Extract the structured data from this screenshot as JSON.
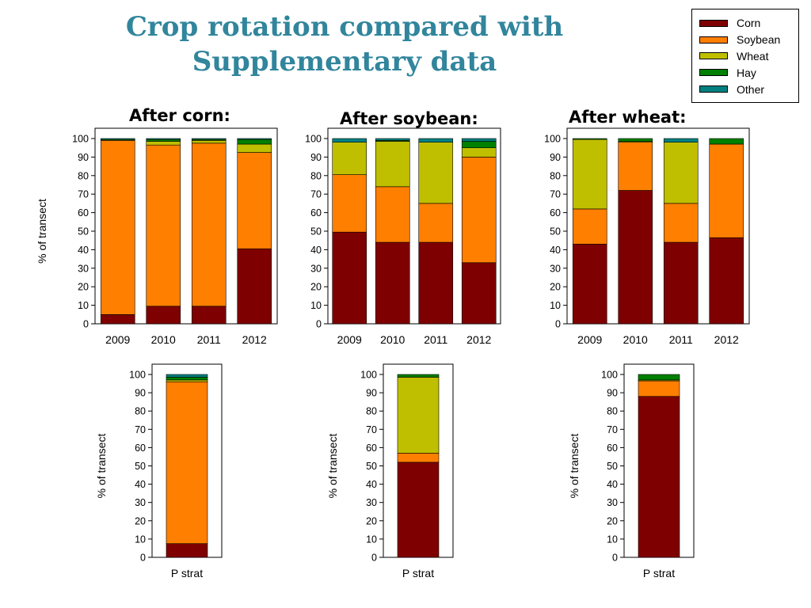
{
  "slide": {
    "title_line1": "Crop rotation compared with",
    "title_line2": "Supplementary data"
  },
  "legend": {
    "items": [
      {
        "label": "Corn",
        "color": "#7f0000"
      },
      {
        "label": "Soybean",
        "color": "#ff7f00"
      },
      {
        "label": "Wheat",
        "color": "#bfbf00"
      },
      {
        "label": "Hay",
        "color": "#008000"
      },
      {
        "label": "Other",
        "color": "#008080"
      }
    ]
  },
  "colors": {
    "corn": "#7f0000",
    "soybean": "#ff7f00",
    "wheat": "#bfbf00",
    "hay": "#008000",
    "other": "#008080"
  },
  "chart_data": [
    {
      "type": "bar",
      "stacked": true,
      "title": "After corn:",
      "ylabel": "% of transect",
      "xlabel": "",
      "categories": [
        "2009",
        "2010",
        "2011",
        "2012"
      ],
      "ylim": [
        0,
        100
      ],
      "yticks": [
        0,
        10,
        20,
        30,
        40,
        50,
        60,
        70,
        80,
        90,
        100
      ],
      "grid": false,
      "series": [
        {
          "name": "Corn",
          "values": [
            5,
            9.5,
            9.5,
            40.5
          ]
        },
        {
          "name": "Soybean",
          "values": [
            94,
            87,
            88,
            52
          ]
        },
        {
          "name": "Wheat",
          "values": [
            0,
            2,
            1.5,
            4.5
          ]
        },
        {
          "name": "Hay",
          "values": [
            0.5,
            1,
            0.5,
            2.5
          ]
        },
        {
          "name": "Other",
          "values": [
            0.5,
            0.5,
            0.5,
            0.5
          ]
        }
      ]
    },
    {
      "type": "bar",
      "stacked": true,
      "title": "After soybean:",
      "ylabel": "",
      "xlabel": "",
      "categories": [
        "2009",
        "2010",
        "2011",
        "2012"
      ],
      "ylim": [
        0,
        100
      ],
      "yticks": [
        0,
        10,
        20,
        30,
        40,
        50,
        60,
        70,
        80,
        90,
        100
      ],
      "grid": false,
      "series": [
        {
          "name": "Corn",
          "values": [
            49.5,
            44,
            44,
            33
          ]
        },
        {
          "name": "Soybean",
          "values": [
            31,
            30,
            21,
            57
          ]
        },
        {
          "name": "Wheat",
          "values": [
            17.5,
            24.5,
            33,
            5
          ]
        },
        {
          "name": "Hay",
          "values": [
            0,
            0.5,
            0,
            3.5
          ]
        },
        {
          "name": "Other",
          "values": [
            2,
            1,
            2,
            1.5
          ]
        }
      ]
    },
    {
      "type": "bar",
      "stacked": true,
      "title": "After wheat:",
      "ylabel": "",
      "xlabel": "",
      "categories": [
        "2009",
        "2010",
        "2011",
        "2012"
      ],
      "ylim": [
        0,
        100
      ],
      "yticks": [
        0,
        10,
        20,
        30,
        40,
        50,
        60,
        70,
        80,
        90,
        100
      ],
      "grid": false,
      "series": [
        {
          "name": "Corn",
          "values": [
            43,
            72,
            44,
            46.5
          ]
        },
        {
          "name": "Soybean",
          "values": [
            19,
            26,
            21,
            50.5
          ]
        },
        {
          "name": "Wheat",
          "values": [
            37.5,
            0.5,
            33,
            0
          ]
        },
        {
          "name": "Hay",
          "values": [
            0.5,
            1.5,
            0,
            3
          ]
        },
        {
          "name": "Other",
          "values": [
            0,
            0,
            2,
            0
          ]
        }
      ]
    },
    {
      "type": "bar",
      "stacked": true,
      "title": "",
      "ylabel": "% of transect",
      "xlabel": "",
      "categories": [
        "P strat"
      ],
      "ylim": [
        0,
        100
      ],
      "yticks": [
        0,
        10,
        20,
        30,
        40,
        50,
        60,
        70,
        80,
        90,
        100
      ],
      "grid": false,
      "series": [
        {
          "name": "Corn",
          "values": [
            7.5
          ]
        },
        {
          "name": "Soybean",
          "values": [
            88.5
          ]
        },
        {
          "name": "Wheat",
          "values": [
            1
          ]
        },
        {
          "name": "Hay",
          "values": [
            1.5
          ]
        },
        {
          "name": "Other",
          "values": [
            1.5
          ]
        }
      ]
    },
    {
      "type": "bar",
      "stacked": true,
      "title": "",
      "ylabel": "% of transect",
      "xlabel": "",
      "categories": [
        "P strat"
      ],
      "ylim": [
        0,
        100
      ],
      "yticks": [
        0,
        10,
        20,
        30,
        40,
        50,
        60,
        70,
        80,
        90,
        100
      ],
      "grid": false,
      "series": [
        {
          "name": "Corn",
          "values": [
            52
          ]
        },
        {
          "name": "Soybean",
          "values": [
            5
          ]
        },
        {
          "name": "Wheat",
          "values": [
            41.5
          ]
        },
        {
          "name": "Hay",
          "values": [
            1.5
          ]
        },
        {
          "name": "Other",
          "values": [
            0
          ]
        }
      ]
    },
    {
      "type": "bar",
      "stacked": true,
      "title": "",
      "ylabel": "% of transect",
      "xlabel": "",
      "categories": [
        "P strat"
      ],
      "ylim": [
        0,
        100
      ],
      "yticks": [
        0,
        10,
        20,
        30,
        40,
        50,
        60,
        70,
        80,
        90,
        100
      ],
      "grid": false,
      "series": [
        {
          "name": "Corn",
          "values": [
            88
          ]
        },
        {
          "name": "Soybean",
          "values": [
            8.5
          ]
        },
        {
          "name": "Wheat",
          "values": [
            0.5
          ]
        },
        {
          "name": "Hay",
          "values": [
            3
          ]
        },
        {
          "name": "Other",
          "values": [
            0
          ]
        }
      ]
    }
  ]
}
